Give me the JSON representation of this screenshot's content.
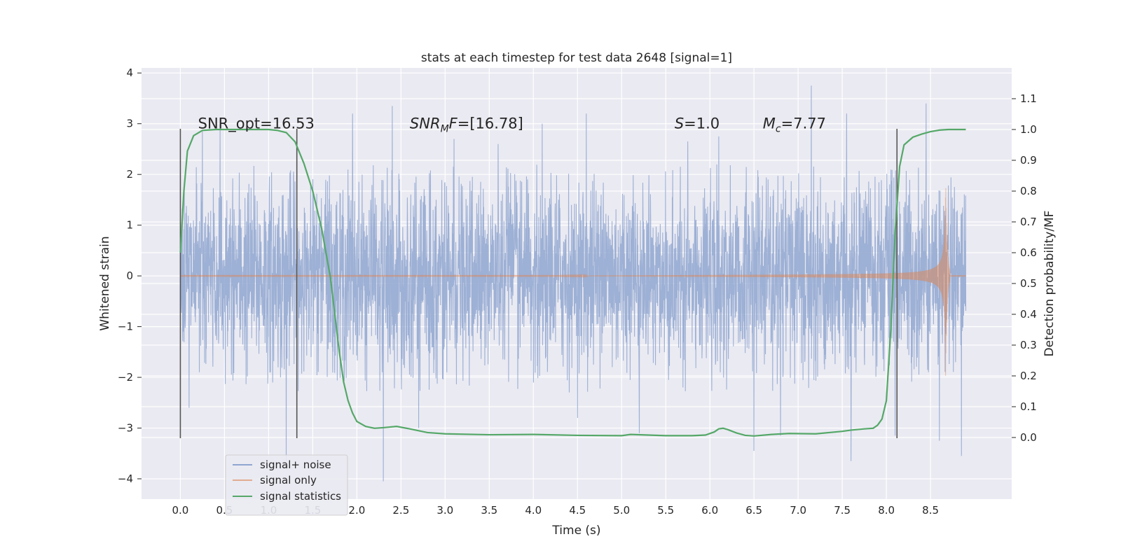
{
  "chart_data": {
    "type": "line",
    "title": "stats at each timestep for test data 2648 [signal=1]",
    "xlabel": "Time (s)",
    "ylabel_left": "Whitened strain",
    "ylabel_right": "Detection probability/MF",
    "xlim": [
      -0.44,
      9.42
    ],
    "ylim_left": [
      -4.4,
      4.1
    ],
    "ylim_right": [
      -0.2,
      1.2
    ],
    "x_ticks": [
      0.0,
      0.5,
      1.0,
      1.5,
      2.0,
      2.5,
      3.0,
      3.5,
      4.0,
      4.5,
      5.0,
      5.5,
      6.0,
      6.5,
      7.0,
      7.5,
      8.0,
      8.5
    ],
    "x_tick_labels": [
      "0.0",
      "0.5",
      "1.0",
      "1.5",
      "2.0",
      "2.5",
      "3.0",
      "3.5",
      "4.0",
      "4.5",
      "5.0",
      "5.5",
      "6.0",
      "6.5",
      "7.0",
      "7.5",
      "8.0",
      "8.5"
    ],
    "y_left_ticks": [
      4,
      3,
      2,
      1,
      0,
      -1,
      -2,
      -3,
      -4
    ],
    "y_left_tick_labels": [
      "4",
      "3",
      "2",
      "1",
      "0",
      "−1",
      "−2",
      "−3",
      "−4"
    ],
    "y_right_ticks": [
      1.1,
      1.0,
      0.9,
      0.8,
      0.7,
      0.6,
      0.5,
      0.4,
      0.3,
      0.2,
      0.1,
      0.0
    ],
    "y_right_tick_labels": [
      "1.1",
      "1.0",
      "0.9",
      "0.8",
      "0.7",
      "0.6",
      "0.5",
      "0.4",
      "0.3",
      "0.2",
      "0.1",
      "0.0"
    ],
    "series": [
      {
        "name": "signal+ noise",
        "color": "#8fa6d0",
        "axis": "left",
        "x_range": [
          0.0,
          8.9
        ],
        "envelope_typical": 1.8,
        "peak_times": [
          0.25,
          0.45,
          1.2,
          1.95,
          2.4,
          3.1,
          3.6,
          4.1,
          4.6,
          5.2,
          5.75,
          6.1,
          6.5,
          7.15,
          7.55,
          8.1,
          8.45,
          8.85
        ],
        "peak_values": [
          2.85,
          3.0,
          2.9,
          3.2,
          3.35,
          2.7,
          2.6,
          3.0,
          3.2,
          2.55,
          2.65,
          2.75,
          3.05,
          3.75,
          3.2,
          3.05,
          3.4,
          2.35
        ],
        "trough_times": [
          0.1,
          1.2,
          2.3,
          2.7,
          4.5,
          5.2,
          6.5,
          6.8,
          7.6,
          8.1,
          8.6,
          8.85
        ],
        "trough_values": [
          -2.6,
          -3.65,
          -4.05,
          -3.0,
          -2.8,
          -3.1,
          -3.45,
          -3.15,
          -3.65,
          -3.15,
          -3.25,
          -3.55
        ]
      },
      {
        "name": "signal only",
        "color": "#dd8452",
        "axis": "left",
        "t_start": 4.3,
        "t_merger": 8.67,
        "amplitude_at_start": 0.02,
        "amplitude_at_8": 0.45,
        "peak_amplitude": 2.1,
        "ringdown_end": 8.72
      },
      {
        "name": "signal statistics",
        "color": "#55a868",
        "axis": "right",
        "x": [
          0.0,
          0.04,
          0.08,
          0.15,
          0.25,
          0.4,
          0.6,
          0.8,
          1.0,
          1.1,
          1.2,
          1.3,
          1.4,
          1.5,
          1.6,
          1.7,
          1.75,
          1.8,
          1.85,
          1.9,
          1.95,
          2.0,
          2.1,
          2.2,
          2.3,
          2.45,
          2.6,
          2.8,
          3.0,
          3.5,
          4.0,
          4.5,
          5.0,
          5.1,
          5.5,
          5.8,
          5.95,
          6.05,
          6.1,
          6.15,
          6.2,
          6.3,
          6.4,
          6.5,
          6.7,
          6.9,
          7.2,
          7.5,
          7.6,
          7.75,
          7.85,
          7.9,
          7.95,
          8.0,
          8.05,
          8.1,
          8.15,
          8.2,
          8.3,
          8.4,
          8.5,
          8.6,
          8.7,
          8.8,
          8.9
        ],
        "y": [
          0.6,
          0.8,
          0.93,
          0.98,
          0.997,
          1.0,
          1.0,
          1.0,
          1.0,
          0.997,
          0.99,
          0.96,
          0.89,
          0.8,
          0.68,
          0.52,
          0.4,
          0.28,
          0.18,
          0.12,
          0.08,
          0.052,
          0.036,
          0.03,
          0.032,
          0.036,
          0.028,
          0.016,
          0.012,
          0.009,
          0.01,
          0.007,
          0.006,
          0.01,
          0.006,
          0.006,
          0.008,
          0.018,
          0.028,
          0.03,
          0.026,
          0.015,
          0.007,
          0.005,
          0.01,
          0.013,
          0.012,
          0.02,
          0.024,
          0.028,
          0.03,
          0.04,
          0.06,
          0.12,
          0.35,
          0.67,
          0.88,
          0.95,
          0.975,
          0.985,
          0.993,
          0.998,
          1.0,
          1.0,
          1.0
        ]
      }
    ],
    "vertical_lines": [
      0.0,
      1.32,
      8.12
    ],
    "vertical_line_color": "#555555",
    "vertical_line_yrange": [
      -3.2,
      2.9
    ],
    "annotations": [
      {
        "prefix": "SNR_opt=",
        "math": "",
        "sub": "",
        "suffix": "",
        "value": "16.53",
        "x": 0.2
      },
      {
        "prefix": "",
        "math": "SNR",
        "sub": "M",
        "suffix": "F=",
        "value": "[16.78]",
        "x": 2.6
      },
      {
        "prefix": "",
        "math": "S",
        "sub": "",
        "suffix": "=",
        "value": "1.0",
        "x": 5.6
      },
      {
        "prefix": "",
        "math": "M",
        "sub": "c",
        "suffix": "=",
        "value": "7.77",
        "x": 6.6
      }
    ],
    "annotation_y": 3.0,
    "legend": {
      "placement": "lower-left",
      "entries": [
        "signal+ noise",
        "signal only",
        "signal statistics"
      ]
    },
    "grid": true,
    "background_color": "#eaeaf2"
  }
}
